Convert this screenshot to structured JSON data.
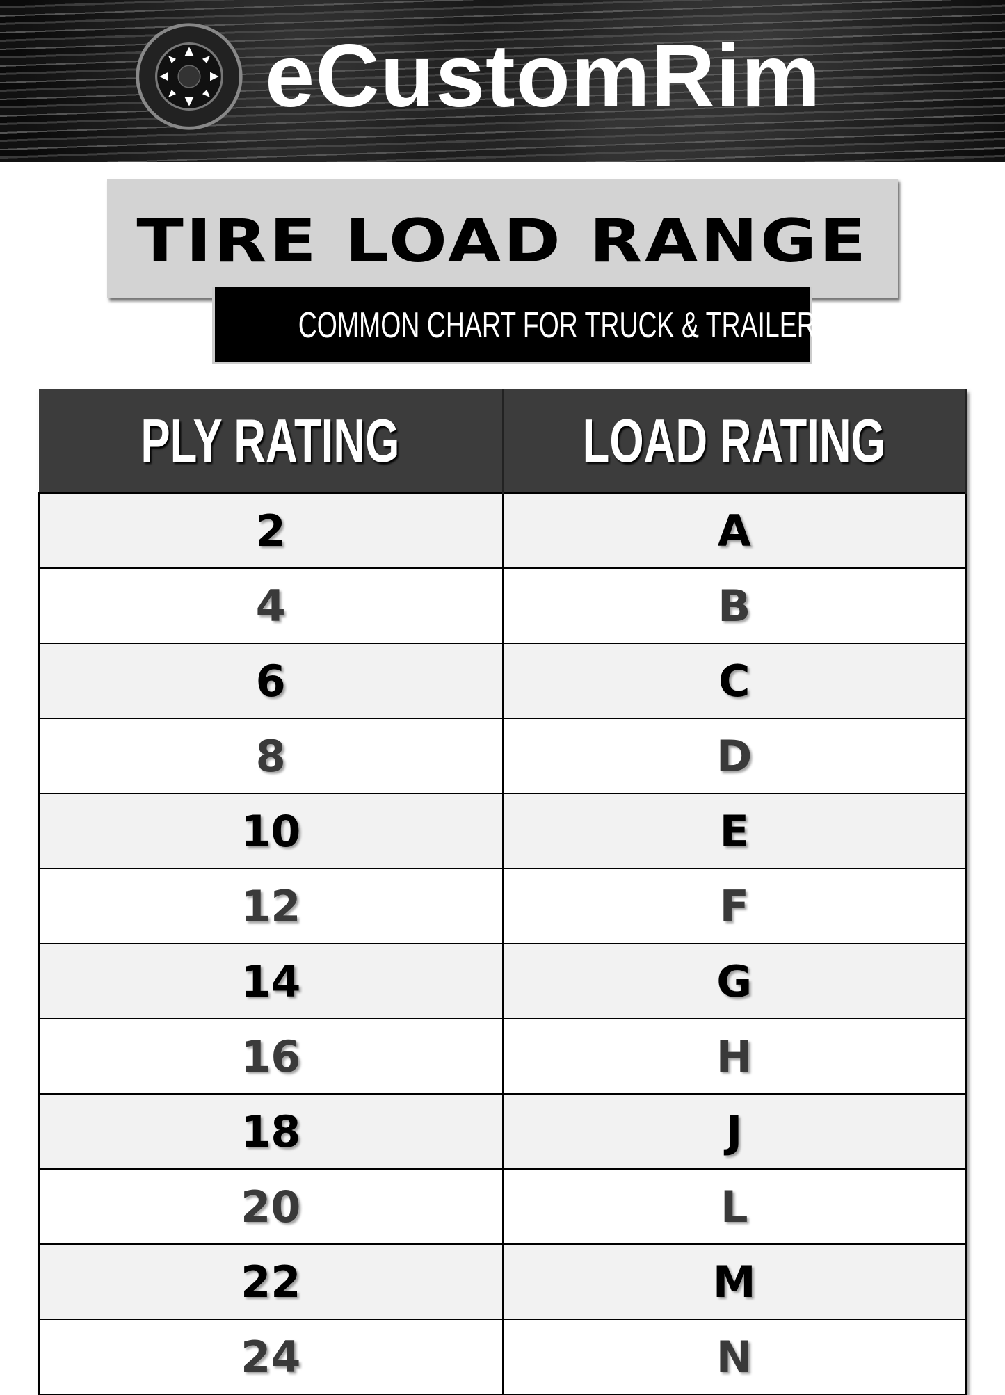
{
  "brand": {
    "name": "eCustomRim",
    "logo_icon": "wheel-icon"
  },
  "title": "TIRE LOAD RANGE",
  "subtitle": "COMMON CHART FOR TRUCK & TRAILER TIRES",
  "table": {
    "headers": [
      "PLY RATING",
      "LOAD RATING"
    ],
    "rows": [
      [
        "2",
        "A"
      ],
      [
        "4",
        "B"
      ],
      [
        "6",
        "C"
      ],
      [
        "8",
        "D"
      ],
      [
        "10",
        "E"
      ],
      [
        "12",
        "F"
      ],
      [
        "14",
        "G"
      ],
      [
        "16",
        "H"
      ],
      [
        "18",
        "J"
      ],
      [
        "20",
        "L"
      ],
      [
        "22",
        "M"
      ],
      [
        "24",
        "N"
      ]
    ]
  }
}
